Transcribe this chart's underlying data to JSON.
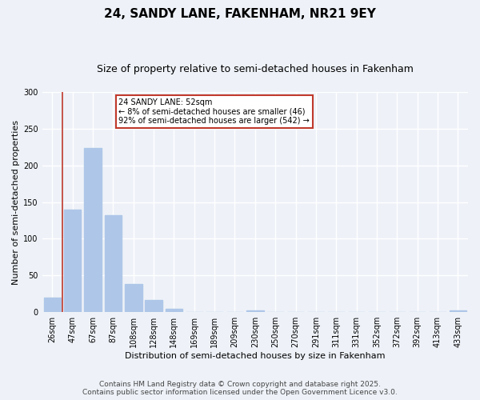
{
  "title": "24, SANDY LANE, FAKENHAM, NR21 9EY",
  "subtitle": "Size of property relative to semi-detached houses in Fakenham",
  "xlabel": "Distribution of semi-detached houses by size in Fakenham",
  "ylabel": "Number of semi-detached properties",
  "bar_labels": [
    "26sqm",
    "47sqm",
    "67sqm",
    "87sqm",
    "108sqm",
    "128sqm",
    "148sqm",
    "169sqm",
    "189sqm",
    "209sqm",
    "230sqm",
    "250sqm",
    "270sqm",
    "291sqm",
    "311sqm",
    "331sqm",
    "352sqm",
    "372sqm",
    "392sqm",
    "413sqm",
    "433sqm"
  ],
  "bar_values": [
    20,
    140,
    224,
    132,
    38,
    17,
    5,
    0,
    0,
    0,
    2,
    0,
    0,
    0,
    0,
    0,
    0,
    0,
    0,
    0,
    2
  ],
  "bar_color": "#aec6e8",
  "vline_x_idx": 1,
  "vline_color": "#c0392b",
  "annotation_title": "24 SANDY LANE: 52sqm",
  "annotation_line1": "← 8% of semi-detached houses are smaller (46)",
  "annotation_line2": "92% of semi-detached houses are larger (542) →",
  "annotation_box_color": "#c0392b",
  "ylim": [
    0,
    300
  ],
  "yticks": [
    0,
    50,
    100,
    150,
    200,
    250,
    300
  ],
  "footer1": "Contains HM Land Registry data © Crown copyright and database right 2025.",
  "footer2": "Contains public sector information licensed under the Open Government Licence v3.0.",
  "bg_color": "#eef2f8",
  "plot_bg_color": "#eef2f8",
  "grid_color": "#ffffff",
  "title_fontsize": 11,
  "subtitle_fontsize": 9,
  "axis_label_fontsize": 8,
  "tick_fontsize": 7,
  "annotation_fontsize": 7,
  "footer_fontsize": 6.5
}
